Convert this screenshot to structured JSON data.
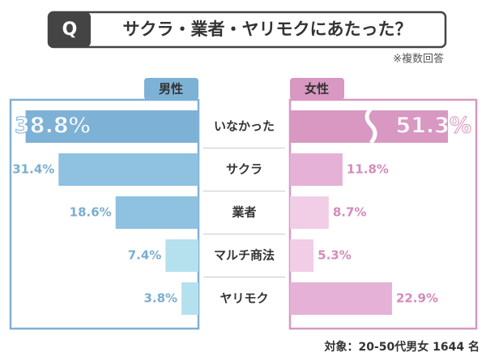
{
  "chart_data": {
    "type": "butterfly-bar",
    "badge": "Q",
    "title": "サクラ・業者・ヤリモクにあたった？",
    "note": "※複数回答",
    "footnote": "対象：20-50代男女 1644 名",
    "categories": [
      "いなかった",
      "サクラ",
      "業者",
      "マルチ商法",
      "ヤリモク"
    ],
    "xlim": [
      0,
      42
    ],
    "series": [
      {
        "name": "男性",
        "color": "#7eb1d6",
        "label_color": "#7aaed0",
        "colors": [
          "#7eb1d6",
          "#8fc1e0",
          "#8fc1e0",
          "#b5e0ee",
          "#b5e0ee"
        ],
        "values": [
          38.8,
          31.4,
          18.6,
          7.4,
          3.8
        ],
        "value_labels": [
          "38.8%",
          "31.4%",
          "18.6%",
          "7.4%",
          "3.8%"
        ]
      },
      {
        "name": "女性",
        "color": "#d898c1",
        "label_color": "#d58bb9",
        "colors": [
          "#d898c1",
          "#e6b1d6",
          "#f2cde6",
          "#f2cde6",
          "#e6b1d6"
        ],
        "values": [
          51.3,
          11.8,
          8.7,
          5.3,
          22.9
        ],
        "value_labels": [
          "51.3%",
          "11.8%",
          "8.7%",
          "5.3%",
          "22.9%"
        ]
      }
    ]
  }
}
